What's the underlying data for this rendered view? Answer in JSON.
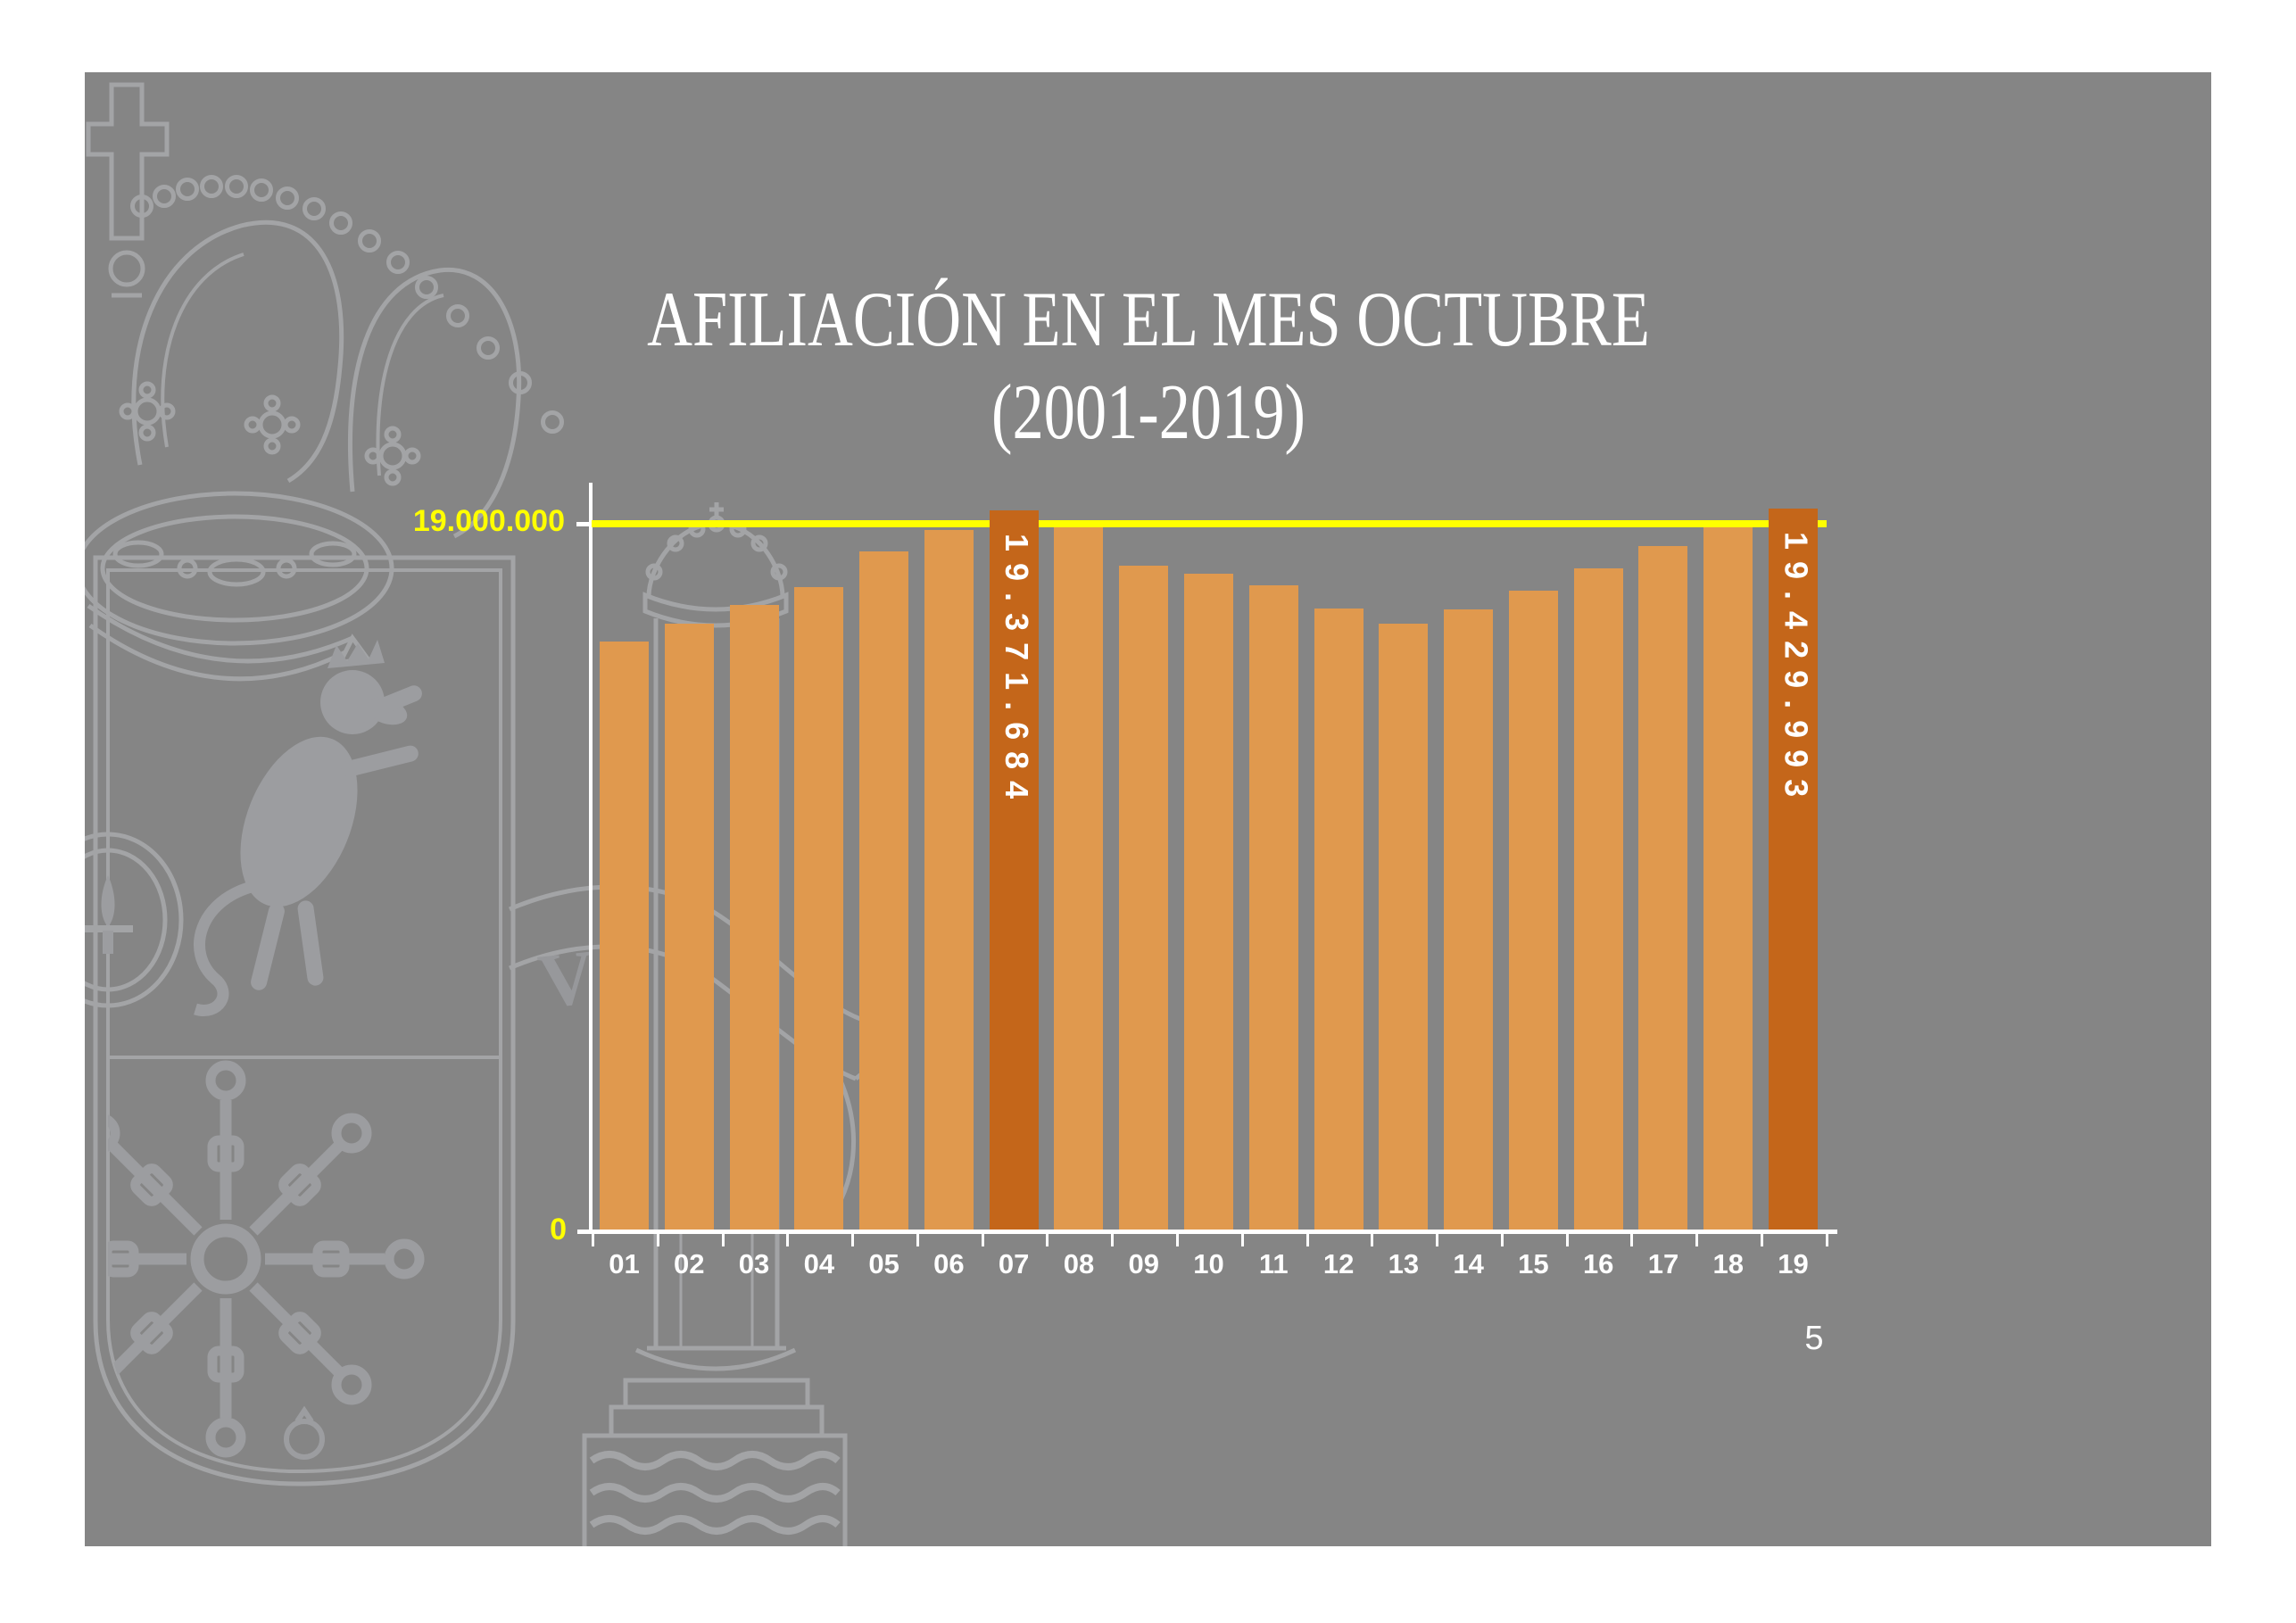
{
  "slide": {
    "title_line1": "AFILIACIÓN EN EL MES OCTUBRE",
    "title_line2": "(2001-2019)",
    "page_number": "5",
    "background_color": "#858585",
    "title_color": "#FFFFFF",
    "watermark": "spanish-coat-of-arms"
  },
  "chart_data": {
    "type": "bar",
    "title": "AFILIACIÓN EN EL MES OCTUBRE (2001-2019)",
    "xlabel": "",
    "ylabel": "",
    "categories": [
      "01",
      "02",
      "03",
      "04",
      "05",
      "06",
      "07",
      "08",
      "09",
      "10",
      "11",
      "12",
      "13",
      "14",
      "15",
      "16",
      "17",
      "18",
      "19"
    ],
    "values": [
      15840000,
      16320000,
      16830000,
      17310000,
      18280000,
      18850000,
      19371684,
      18990000,
      17890000,
      17660000,
      17370000,
      16740000,
      16330000,
      16720000,
      17210000,
      17820000,
      18410000,
      18960000,
      19429993
    ],
    "highlighted": [
      {
        "index": 6,
        "category": "07",
        "label": "19.371.684",
        "value": 19371684
      },
      {
        "index": 18,
        "category": "19",
        "label": "19.429.993",
        "value": 19429993
      }
    ],
    "reference_line": {
      "value": 19000000,
      "label": "19.000.000",
      "color": "#FFFF00"
    },
    "baseline_label": "0",
    "ylim": [
      0,
      19600000
    ],
    "bar_color": "#E0994E",
    "highlight_color": "#C4661A",
    "axis_color": "#FFFFFF",
    "grid": "off",
    "legend": "none"
  }
}
